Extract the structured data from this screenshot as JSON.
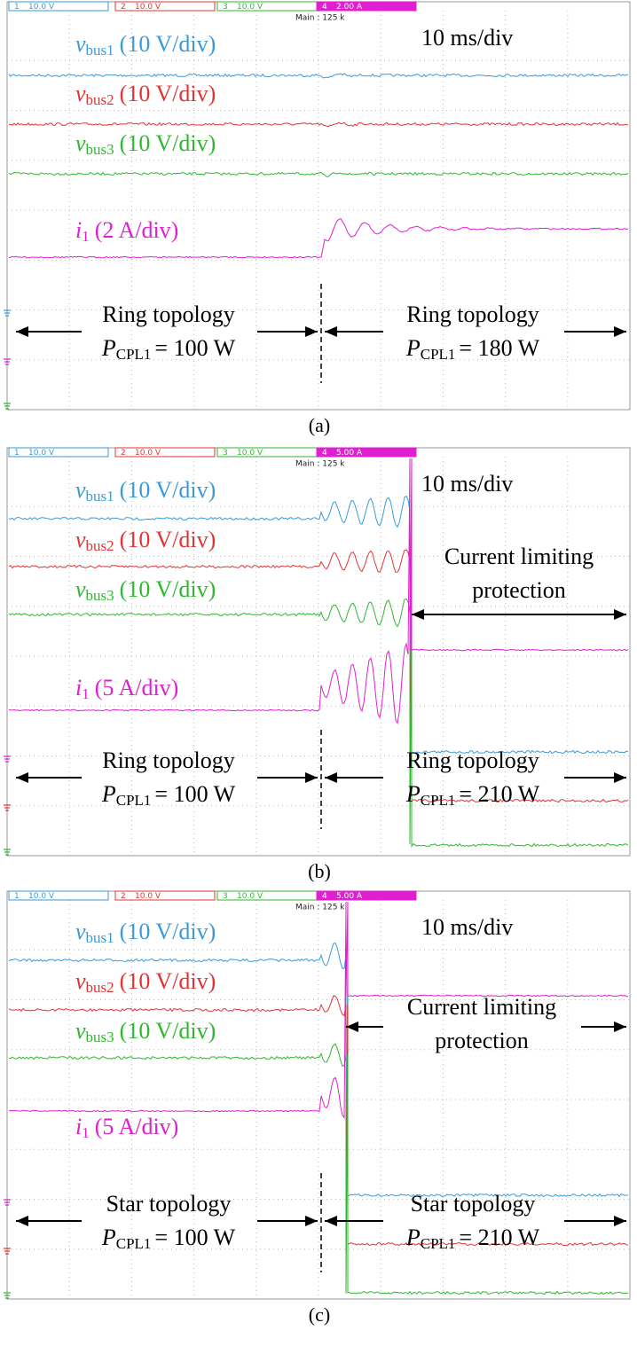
{
  "panels": [
    {
      "caption": "(a)",
      "channels": [
        {
          "number": "1",
          "scale": "10.0 V"
        },
        {
          "number": "2",
          "scale": "10.0 V"
        },
        {
          "number": "3",
          "scale": "10.0 V"
        },
        {
          "number": "4",
          "scale": "2.00 A"
        }
      ],
      "timebase_readout": "Main : 125 k",
      "time_scale": "10 ms/div",
      "traces": [
        {
          "symbol": "v",
          "subscript": "bus1",
          "scale": "(10 V/div)"
        },
        {
          "symbol": "v",
          "subscript": "bus2",
          "scale": "(10 V/div)"
        },
        {
          "symbol": "v",
          "subscript": "bus3",
          "scale": "(10 V/div)"
        },
        {
          "symbol": "i",
          "subscript": "1",
          "scale": "(2 A/div)"
        }
      ],
      "left": {
        "topology": "Ring topology",
        "power_symbol": "P",
        "power_subscript": "CPL1",
        "power_value": "= 100 W"
      },
      "right": {
        "topology": "Ring topology",
        "power_symbol": "P",
        "power_subscript": "CPL1",
        "power_value": "= 180 W"
      }
    },
    {
      "caption": "(b)",
      "channels": [
        {
          "number": "1",
          "scale": "10.0 V"
        },
        {
          "number": "2",
          "scale": "10.0 V"
        },
        {
          "number": "3",
          "scale": "10.0 V"
        },
        {
          "number": "4",
          "scale": "5.00 A"
        }
      ],
      "timebase_readout": "Main : 125 k",
      "time_scale": "10 ms/div",
      "traces": [
        {
          "symbol": "v",
          "subscript": "bus1",
          "scale": "(10 V/div)"
        },
        {
          "symbol": "v",
          "subscript": "bus2",
          "scale": "(10 V/div)"
        },
        {
          "symbol": "v",
          "subscript": "bus3",
          "scale": "(10 V/div)"
        },
        {
          "symbol": "i",
          "subscript": "1",
          "scale": "(5 A/div)"
        }
      ],
      "protection": [
        "Current limiting",
        "protection"
      ],
      "left": {
        "topology": "Ring topology",
        "power_symbol": "P",
        "power_subscript": "CPL1",
        "power_value": "= 100 W"
      },
      "right": {
        "topology": "Ring topology",
        "power_symbol": "P",
        "power_subscript": "CPL1",
        "power_value": "= 210 W"
      }
    },
    {
      "caption": "(c)",
      "channels": [
        {
          "number": "1",
          "scale": "10.0 V"
        },
        {
          "number": "2",
          "scale": "10.0 V"
        },
        {
          "number": "3",
          "scale": "10.0 V"
        },
        {
          "number": "4",
          "scale": "5.00 A"
        }
      ],
      "timebase_readout": "Main : 125 k",
      "time_scale": "10 ms/div",
      "traces": [
        {
          "symbol": "v",
          "subscript": "bus1",
          "scale": "(10 V/div)"
        },
        {
          "symbol": "v",
          "subscript": "bus2",
          "scale": "(10 V/div)"
        },
        {
          "symbol": "v",
          "subscript": "bus3",
          "scale": "(10 V/div)"
        },
        {
          "symbol": "i",
          "subscript": "1",
          "scale": "(5 A/div)"
        }
      ],
      "protection": [
        "Current limiting",
        "protection"
      ],
      "left": {
        "topology": "Star topology",
        "power_symbol": "P",
        "power_subscript": "CPL1",
        "power_value": "= 100 W"
      },
      "right": {
        "topology": "Star topology",
        "power_symbol": "P",
        "power_subscript": "CPL1",
        "power_value": "= 210 W"
      }
    }
  ]
}
